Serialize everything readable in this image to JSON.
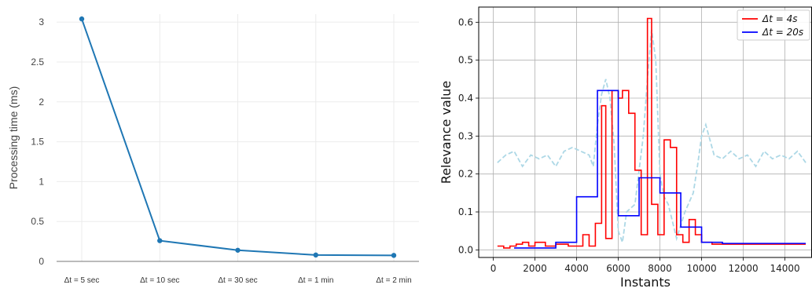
{
  "chart_data": [
    {
      "type": "line",
      "title": "",
      "xlabel": "",
      "ylabel": "Processing time (ms)",
      "categories": [
        "Δt = 5 sec",
        "Δt = 10 sec",
        "Δt = 30 sec",
        "Δt = 1 min",
        "Δt = 2 min"
      ],
      "values": [
        3.04,
        0.26,
        0.14,
        0.08,
        0.075
      ],
      "ylim": [
        0,
        3.1
      ],
      "yticks": [
        0,
        0.5,
        1,
        1.5,
        2,
        2.5,
        3
      ],
      "ytick_labels": [
        "0",
        "0.5",
        "1",
        "1.5",
        "2",
        "2.5",
        "3"
      ],
      "grid": true,
      "color": "#1f77b4"
    },
    {
      "type": "line",
      "title": "",
      "xlabel": "Instants",
      "ylabel": "Relevance value",
      "xlim": [
        -700,
        15300
      ],
      "ylim": [
        -0.02,
        0.64
      ],
      "xticks": [
        0,
        2000,
        4000,
        6000,
        8000,
        10000,
        12000,
        14000
      ],
      "xtick_labels": [
        "0",
        "2000",
        "4000",
        "6000",
        "8000",
        "10000",
        "12000",
        "14000"
      ],
      "yticks": [
        0.0,
        0.1,
        0.2,
        0.3,
        0.4,
        0.5,
        0.6
      ],
      "ytick_labels": [
        "0.0",
        "0.1",
        "0.2",
        "0.3",
        "0.4",
        "0.5",
        "0.6"
      ],
      "grid": true,
      "legend": "top-right",
      "series": [
        {
          "name": "Δt = 4s",
          "style": "step",
          "color": "#ff0000",
          "x": [
            200,
            500,
            800,
            1100,
            1400,
            1700,
            2000,
            2500,
            3000,
            3600,
            4000,
            4300,
            4600,
            4900,
            5200,
            5400,
            5700,
            6000,
            6200,
            6500,
            6800,
            7100,
            7400,
            7600,
            7900,
            8200,
            8500,
            8800,
            9100,
            9400,
            9700,
            10000,
            10500,
            11000,
            12000,
            13000,
            14000,
            15000
          ],
          "y": [
            0.01,
            0.005,
            0.01,
            0.015,
            0.02,
            0.01,
            0.02,
            0.01,
            0.015,
            0.01,
            0.01,
            0.04,
            0.01,
            0.07,
            0.38,
            0.03,
            0.42,
            0.4,
            0.42,
            0.36,
            0.21,
            0.04,
            0.61,
            0.12,
            0.04,
            0.29,
            0.27,
            0.04,
            0.02,
            0.08,
            0.04,
            0.02,
            0.015,
            0.015,
            0.015,
            0.015,
            0.015,
            0.015
          ]
        },
        {
          "name": "Δt = 20s",
          "style": "step",
          "color": "#0000ff",
          "x": [
            1000,
            3000,
            4000,
            5000,
            6000,
            7000,
            8000,
            9000,
            10000,
            11000,
            12000,
            13000,
            14000,
            15000
          ],
          "y": [
            0.005,
            0.02,
            0.14,
            0.42,
            0.09,
            0.19,
            0.15,
            0.06,
            0.02,
            0.017,
            0.017,
            0.017,
            0.017,
            0.017
          ]
        },
        {
          "name": "",
          "style": "dashed",
          "color": "#add8e6",
          "x": [
            200,
            600,
            1000,
            1400,
            1800,
            2200,
            2600,
            3000,
            3400,
            3800,
            4200,
            4600,
            4800,
            5000,
            5200,
            5400,
            5600,
            5800,
            6000,
            6200,
            6400,
            6800,
            7200,
            7400,
            7600,
            7800,
            8000,
            8200,
            8400,
            8800,
            9200,
            9600,
            9800,
            10000,
            10200,
            10600,
            11000,
            11400,
            11800,
            12200,
            12600,
            13000,
            13400,
            13800,
            14200,
            14600,
            15000
          ],
          "y": [
            0.23,
            0.25,
            0.26,
            0.22,
            0.25,
            0.24,
            0.25,
            0.22,
            0.26,
            0.27,
            0.26,
            0.25,
            0.22,
            0.33,
            0.41,
            0.45,
            0.4,
            0.28,
            0.05,
            0.02,
            0.1,
            0.12,
            0.3,
            0.45,
            0.58,
            0.5,
            0.2,
            0.14,
            0.12,
            0.03,
            0.1,
            0.15,
            0.22,
            0.3,
            0.33,
            0.25,
            0.24,
            0.26,
            0.24,
            0.25,
            0.22,
            0.26,
            0.24,
            0.25,
            0.24,
            0.26,
            0.23
          ]
        }
      ]
    }
  ]
}
